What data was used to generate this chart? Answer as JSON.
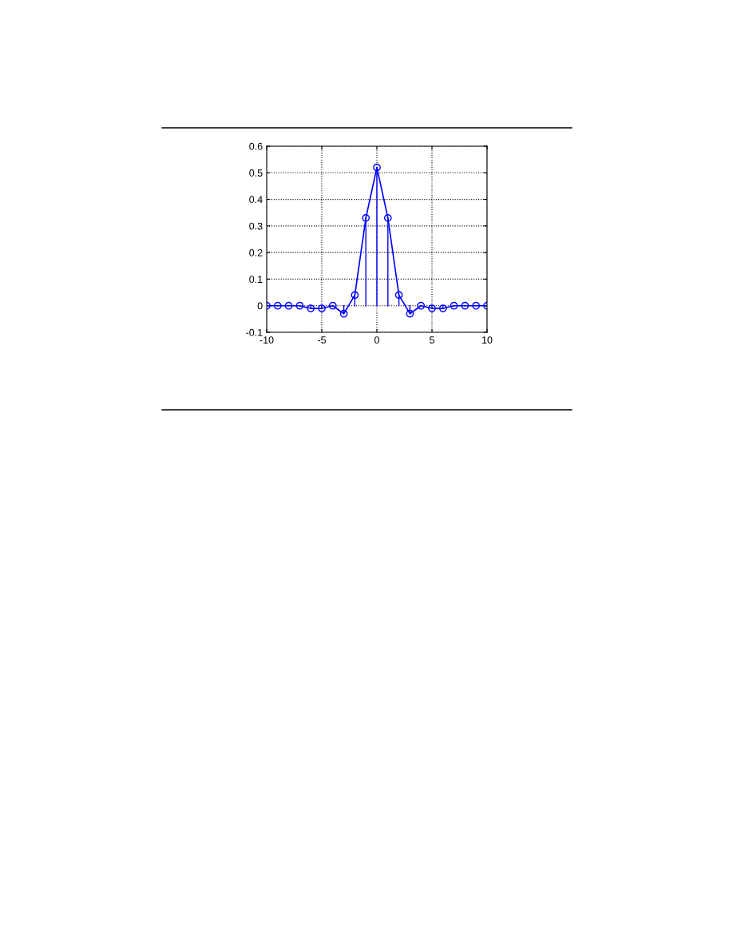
{
  "chart_data": {
    "type": "lollipop",
    "x": [
      -10,
      -9,
      -8,
      -7,
      -6,
      -5,
      -4,
      -3,
      -2,
      -1,
      0,
      1,
      2,
      3,
      4,
      5,
      6,
      7,
      8,
      9,
      10
    ],
    "series": [
      {
        "color": "#0000ff",
        "marker": "circle",
        "values": [
          0.0,
          0.0,
          0.0,
          0.0,
          -0.01,
          -0.01,
          0.0,
          -0.03,
          0.04,
          0.33,
          0.52,
          0.33,
          0.04,
          -0.03,
          0.0,
          -0.01,
          -0.01,
          0.0,
          0.0,
          0.0,
          0.0
        ]
      },
      {
        "type": "line",
        "color": "#0000ff",
        "line_style": "solid",
        "values": [
          0.0,
          0.0,
          0.0,
          0.0,
          -0.01,
          -0.01,
          0.0,
          -0.03,
          0.04,
          0.33,
          0.52,
          0.33,
          0.04,
          -0.03,
          0.0,
          -0.01,
          -0.01,
          0.0,
          0.0,
          0.0,
          0.0
        ]
      }
    ],
    "xlim": [
      -10,
      10
    ],
    "xticks": [
      -10,
      -5,
      0,
      5,
      10
    ],
    "ylim": [
      -0.1,
      0.6
    ],
    "yticks": [
      -0.1,
      0,
      0.1,
      0.2,
      0.3,
      0.4,
      0.5,
      0.6
    ],
    "grid": true
  }
}
